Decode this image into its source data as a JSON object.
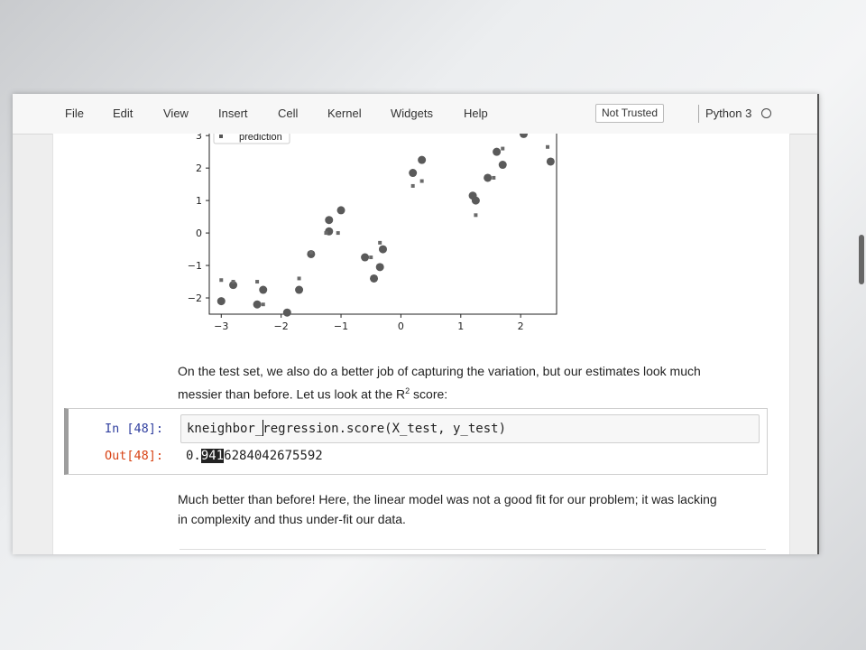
{
  "menubar": {
    "items": [
      "File",
      "Edit",
      "View",
      "Insert",
      "Cell",
      "Kernel",
      "Widgets",
      "Help"
    ],
    "trust_badge": "Not Trusted",
    "kernel_name": "Python 3"
  },
  "plot": {
    "legend_label": "prediction",
    "x_ticks": [
      "−3",
      "−2",
      "−1",
      "0",
      "1",
      "2"
    ],
    "y_ticks": [
      "3",
      "2",
      "1",
      "0",
      "−1",
      "−2"
    ]
  },
  "chart_data": {
    "type": "scatter",
    "xlim": [
      -3.2,
      2.6
    ],
    "ylim": [
      -2.5,
      3.2
    ],
    "series": [
      {
        "name": "",
        "marker": "large-dot",
        "points": [
          [
            -3.0,
            -2.1
          ],
          [
            -2.8,
            -1.6
          ],
          [
            -2.4,
            -2.2
          ],
          [
            -2.3,
            -1.75
          ],
          [
            -1.9,
            -2.45
          ],
          [
            -1.7,
            -1.75
          ],
          [
            -1.5,
            -0.65
          ],
          [
            -1.2,
            0.4
          ],
          [
            -1.2,
            0.05
          ],
          [
            -1.0,
            0.7
          ],
          [
            -0.6,
            -0.75
          ],
          [
            -0.45,
            -1.4
          ],
          [
            -0.35,
            -1.05
          ],
          [
            -0.3,
            -0.5
          ],
          [
            0.2,
            1.85
          ],
          [
            0.35,
            2.25
          ],
          [
            1.2,
            1.15
          ],
          [
            1.25,
            1.0
          ],
          [
            1.45,
            1.7
          ],
          [
            1.6,
            2.5
          ],
          [
            1.7,
            2.1
          ],
          [
            2.05,
            3.05
          ],
          [
            2.5,
            2.2
          ]
        ]
      },
      {
        "name": "prediction",
        "marker": "small-square",
        "points": [
          [
            -3.0,
            -1.45
          ],
          [
            -2.8,
            -1.5
          ],
          [
            -2.4,
            -1.5
          ],
          [
            -2.3,
            -2.2
          ],
          [
            -1.7,
            -1.4
          ],
          [
            -1.5,
            -0.6
          ],
          [
            -1.25,
            0.0
          ],
          [
            -1.05,
            0.0
          ],
          [
            -0.5,
            -0.75
          ],
          [
            -0.35,
            -0.3
          ],
          [
            0.2,
            1.45
          ],
          [
            0.35,
            1.6
          ],
          [
            1.25,
            0.55
          ],
          [
            1.55,
            1.7
          ],
          [
            1.7,
            2.6
          ],
          [
            2.05,
            3.1
          ],
          [
            2.45,
            2.65
          ]
        ]
      }
    ]
  },
  "markdown_1": {
    "line1": "On the test set, we also do a better job of capturing the variation, but our estimates look much",
    "line2_before": "messier than before. Let us look at the R",
    "superscript": "2",
    "line2_after": " score:"
  },
  "code_cell": {
    "in_prompt": "In [48]:",
    "code": "kneighbor_regression.score(X_test, y_test)",
    "out_prompt": "Out[48]:",
    "output_pre": "0.",
    "output_selected": "941",
    "output_post": "6284042675592"
  },
  "markdown_2": {
    "line1": "Much better than before! Here, the linear model was not a good fit for our problem; it was lacking",
    "line2": "in complexity and thus under-fit our data."
  }
}
